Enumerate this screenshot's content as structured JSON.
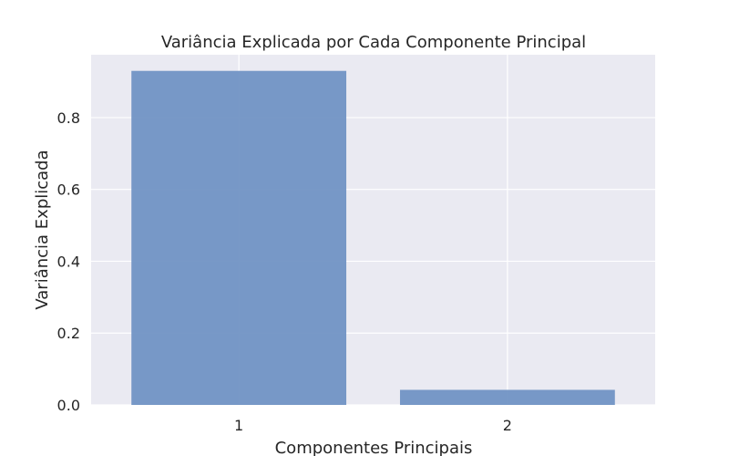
{
  "chart_data": {
    "type": "bar",
    "title": "Variância Explicada por Cada Componente Principal",
    "xlabel": "Componentes Principais",
    "ylabel": "Variância Explicada",
    "categories": [
      "1",
      "2"
    ],
    "values": [
      0.93,
      0.042
    ],
    "ylim": [
      0,
      0.975
    ],
    "yticks": [
      "0.0",
      "0.2",
      "0.4",
      "0.6",
      "0.8"
    ],
    "grid": true,
    "bar_color": "#7193c4",
    "plot_background": "#eaeaf2"
  }
}
